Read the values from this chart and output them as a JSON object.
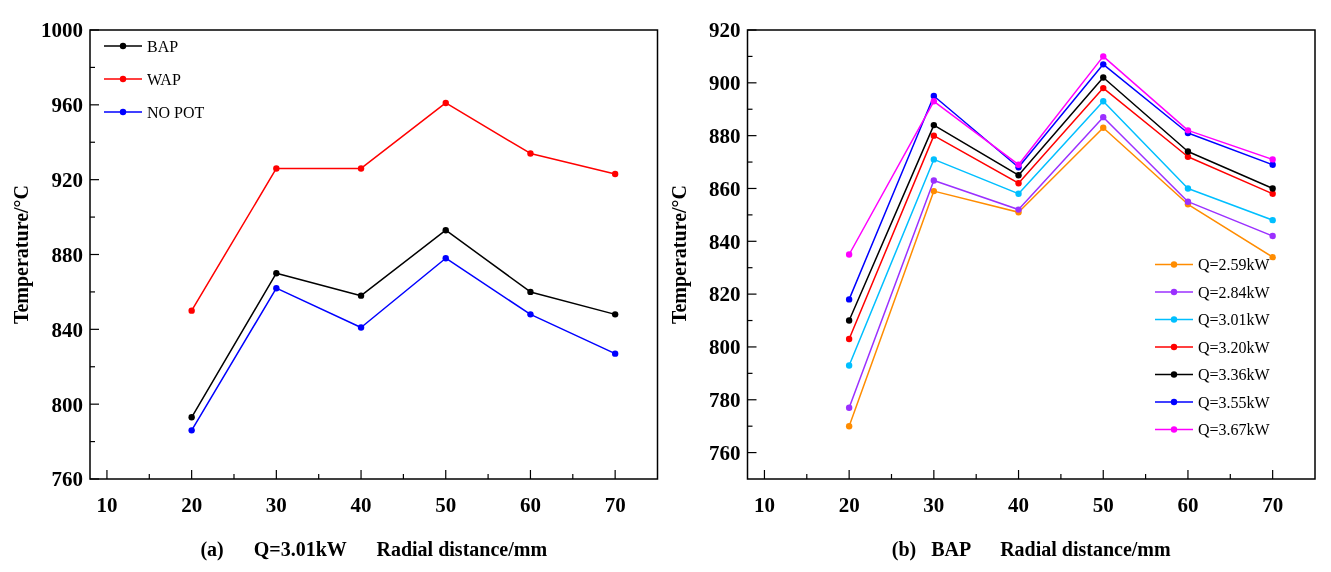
{
  "chart_data": [
    {
      "type": "line",
      "xlabel": "(a)      Q=3.01kW      Radial distance/mm",
      "ylabel": "Temperature/°C",
      "x": [
        20,
        30,
        40,
        50,
        60,
        70
      ],
      "xlim": [
        8,
        75
      ],
      "xticks": [
        10,
        {
          "value": 15,
          "label": null
        },
        20,
        {
          "value": 25,
          "label": null
        },
        30,
        {
          "value": 35,
          "label": null
        },
        40,
        {
          "value": 45,
          "label": null
        },
        50,
        {
          "value": 55,
          "label": null
        },
        60,
        {
          "value": 65,
          "label": null
        },
        70
      ],
      "ylim": [
        760,
        1000
      ],
      "yticks": [
        760,
        {
          "value": 780,
          "label": null
        },
        800,
        {
          "value": 820,
          "label": null
        },
        840,
        {
          "value": 860,
          "label": null
        },
        880,
        {
          "value": 900,
          "label": null
        },
        920,
        {
          "value": 940,
          "label": null
        },
        960,
        {
          "value": 980,
          "label": null
        },
        1000
      ],
      "legend": "top left",
      "marker": "circle",
      "grid": false,
      "series": [
        {
          "name": "BAP",
          "color": "#000000",
          "values": [
            793,
            870,
            858,
            893,
            860,
            848
          ]
        },
        {
          "name": "WAP",
          "color": "#ff0000",
          "values": [
            850,
            926,
            926,
            961,
            934,
            923
          ]
        },
        {
          "name": "NO POT",
          "color": "#0000ff",
          "values": [
            786,
            862,
            841,
            878,
            848,
            827
          ]
        }
      ]
    },
    {
      "type": "line",
      "xlabel": "(b)   BAP      Radial distance/mm",
      "ylabel": "Temperature/°C",
      "x": [
        20,
        30,
        40,
        50,
        60,
        70
      ],
      "xlim": [
        8,
        75
      ],
      "xticks": [
        10,
        {
          "value": 15,
          "label": null
        },
        20,
        {
          "value": 25,
          "label": null
        },
        30,
        {
          "value": 35,
          "label": null
        },
        40,
        {
          "value": 45,
          "label": null
        },
        50,
        {
          "value": 55,
          "label": null
        },
        60,
        {
          "value": 65,
          "label": null
        },
        70
      ],
      "ylim": [
        750,
        920
      ],
      "yticks": [
        760,
        {
          "value": 770,
          "label": null
        },
        780,
        {
          "value": 790,
          "label": null
        },
        800,
        {
          "value": 810,
          "label": null
        },
        820,
        {
          "value": 830,
          "label": null
        },
        840,
        {
          "value": 850,
          "label": null
        },
        860,
        {
          "value": 870,
          "label": null
        },
        880,
        {
          "value": 890,
          "label": null
        },
        900,
        {
          "value": 910,
          "label": null
        },
        920
      ],
      "legend": "bottom right",
      "marker": "circle",
      "grid": false,
      "series": [
        {
          "name": "Q=2.59kW",
          "color": "#ff8c00",
          "values": [
            770,
            859,
            851,
            883,
            854,
            834
          ]
        },
        {
          "name": "Q=2.84kW",
          "color": "#9b30ff",
          "values": [
            777,
            863,
            852,
            887,
            855,
            842
          ]
        },
        {
          "name": "Q=3.01kW",
          "color": "#00bfff",
          "values": [
            793,
            871,
            858,
            893,
            860,
            848
          ]
        },
        {
          "name": "Q=3.20kW",
          "color": "#ff0000",
          "values": [
            803,
            880,
            862,
            898,
            872,
            858
          ]
        },
        {
          "name": "Q=3.36kW",
          "color": "#000000",
          "values": [
            810,
            884,
            865,
            902,
            874,
            860
          ]
        },
        {
          "name": "Q=3.55kW",
          "color": "#0000ff",
          "values": [
            818,
            895,
            868,
            907,
            881,
            869
          ]
        },
        {
          "name": "Q=3.67kW",
          "color": "#ff00ff",
          "values": [
            835,
            893,
            869,
            910,
            882,
            871
          ]
        }
      ]
    }
  ]
}
